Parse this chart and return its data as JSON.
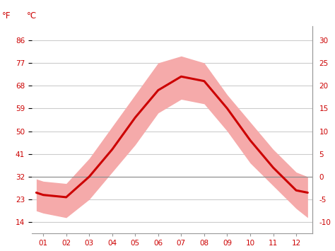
{
  "months": [
    0.7,
    1,
    2,
    3,
    4,
    5,
    6,
    7,
    8,
    9,
    10,
    11,
    12,
    12.5
  ],
  "mean_temp_c": [
    -3.5,
    -4,
    -4.5,
    0,
    6,
    13,
    19,
    22,
    21,
    15,
    8,
    2,
    -3,
    -3.5
  ],
  "max_temp_c": [
    -0.5,
    -1,
    -1.5,
    4,
    11,
    18,
    25,
    26.5,
    25,
    18,
    12,
    6,
    1,
    0
  ],
  "min_temp_c": [
    -7.5,
    -8,
    -9,
    -5,
    1,
    7,
    14,
    17,
    16,
    10,
    3,
    -2,
    -7,
    -9
  ],
  "x_ticks": [
    1,
    2,
    3,
    4,
    5,
    6,
    7,
    8,
    9,
    10,
    11,
    12
  ],
  "x_tick_labels": [
    "01",
    "02",
    "03",
    "04",
    "05",
    "06",
    "07",
    "08",
    "09",
    "10",
    "11",
    "12"
  ],
  "yticks_c": [
    -10,
    -5,
    0,
    5,
    10,
    15,
    20,
    25,
    30
  ],
  "yticks_f": [
    14,
    23,
    32,
    41,
    50,
    59,
    68,
    77,
    86
  ],
  "ylim": [
    -12.5,
    33
  ],
  "xlim": [
    0.5,
    12.7
  ],
  "line_color": "#cc0000",
  "band_color": "#f5aaaa",
  "zero_line_color": "#888888",
  "grid_color": "#cccccc",
  "axis_color": "#cc0000",
  "spine_color": "#999999",
  "background_color": "#ffffff",
  "label_f": "°F",
  "label_c": "°C"
}
